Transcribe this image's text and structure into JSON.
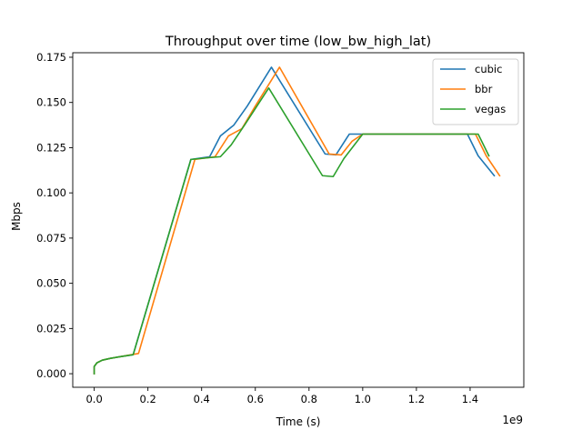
{
  "chart_data": {
    "type": "line",
    "title": "Throughput over time (low_bw_high_lat)",
    "xlabel": "Time (s)",
    "ylabel": "Mbps",
    "x_offset_label": "1e9",
    "xlim": [
      -0.08,
      1.6
    ],
    "ylim": [
      -0.0075,
      0.1775
    ],
    "x_ticks": [
      0.0,
      0.2,
      0.4,
      0.6,
      0.8,
      1.0,
      1.2,
      1.4
    ],
    "x_tick_labels": [
      "0.0",
      "0.2",
      "0.4",
      "0.6",
      "0.8",
      "1.0",
      "1.2",
      "1.4"
    ],
    "y_ticks": [
      0.0,
      0.025,
      0.05,
      0.075,
      0.1,
      0.125,
      0.15,
      0.175
    ],
    "y_tick_labels": [
      "0.000",
      "0.025",
      "0.050",
      "0.075",
      "0.100",
      "0.125",
      "0.150",
      "0.175"
    ],
    "grid": false,
    "legend_position": "top-right",
    "series": [
      {
        "name": "cubic",
        "color": "#1f77b4",
        "x": [
          0.0,
          0.0,
          0.01,
          0.03,
          0.06,
          0.1,
          0.145,
          0.36,
          0.43,
          0.47,
          0.52,
          0.57,
          0.66,
          0.86,
          0.9,
          0.95,
          0.99,
          1.39,
          1.43,
          1.49
        ],
        "y": [
          0.0,
          0.004,
          0.006,
          0.0075,
          0.0085,
          0.0095,
          0.0105,
          0.1185,
          0.12,
          0.1315,
          0.1375,
          0.148,
          0.1695,
          0.1215,
          0.121,
          0.1325,
          0.1325,
          0.1325,
          0.1205,
          0.1095
        ]
      },
      {
        "name": "bbr",
        "color": "#ff7f0e",
        "x": [
          0.0,
          0.0,
          0.01,
          0.03,
          0.06,
          0.1,
          0.165,
          0.375,
          0.45,
          0.5,
          0.55,
          0.6,
          0.69,
          0.875,
          0.92,
          0.96,
          1.0,
          1.42,
          1.46,
          1.51
        ],
        "y": [
          0.0,
          0.004,
          0.006,
          0.0075,
          0.0085,
          0.0095,
          0.0112,
          0.1185,
          0.12,
          0.1315,
          0.1355,
          0.148,
          0.1695,
          0.1215,
          0.121,
          0.1285,
          0.1325,
          0.1325,
          0.1205,
          0.1095
        ]
      },
      {
        "name": "vegas",
        "color": "#2ca02c",
        "x": [
          0.0,
          0.0,
          0.01,
          0.03,
          0.06,
          0.1,
          0.145,
          0.36,
          0.43,
          0.47,
          0.51,
          0.56,
          0.65,
          0.85,
          0.89,
          0.93,
          1.0,
          1.43,
          1.47
        ],
        "y": [
          0.0,
          0.004,
          0.006,
          0.0075,
          0.0085,
          0.0095,
          0.0105,
          0.1185,
          0.1195,
          0.12,
          0.1265,
          0.1375,
          0.158,
          0.1095,
          0.109,
          0.119,
          0.1325,
          0.1325,
          0.1205
        ]
      }
    ]
  }
}
